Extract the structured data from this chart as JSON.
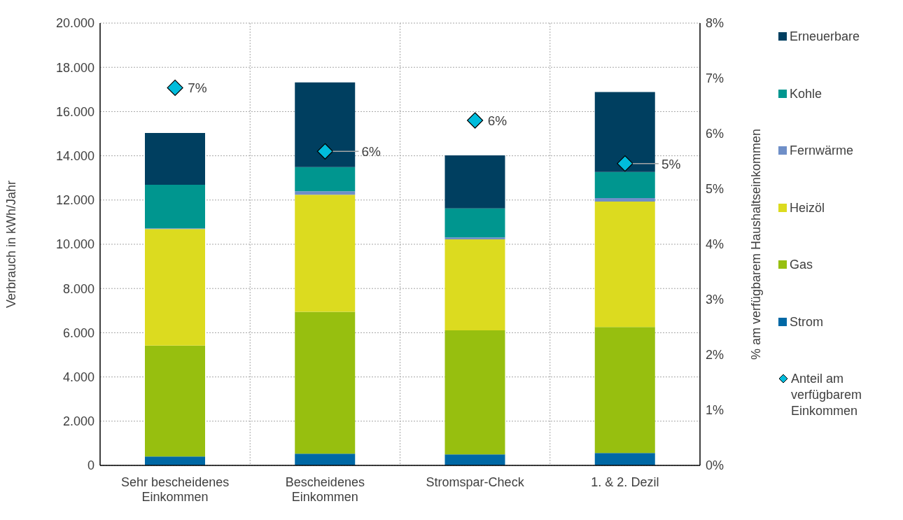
{
  "chart_data": {
    "type": "bar",
    "stacked": true,
    "categories": [
      "Sehr bescheidenes Einkommen",
      "Bescheidenes Einkommen",
      "Stromspar-Check",
      "1. & 2. Dezil"
    ],
    "series": [
      {
        "name": "Strom",
        "color": "#0068a5",
        "values": [
          400,
          530,
          500,
          560
        ]
      },
      {
        "name": "Gas",
        "color": "#97bf0f",
        "values": [
          5020,
          6420,
          5610,
          5700
        ]
      },
      {
        "name": "Heizöl",
        "color": "#dcdb1f",
        "values": [
          5270,
          5290,
          4110,
          5670
        ]
      },
      {
        "name": "Fernwärme",
        "color": "#6f8fc8",
        "values": [
          30,
          160,
          90,
          160
        ]
      },
      {
        "name": "Kohle",
        "color": "#00968f",
        "values": [
          1970,
          1090,
          1310,
          1180
        ]
      },
      {
        "name": "Erneuerbare",
        "color": "#003f60",
        "values": [
          2340,
          3830,
          2400,
          3610
        ]
      },
      {
        "name": "Anteil am verfügbarem Einkommen",
        "type": "scatter",
        "axis": "y2",
        "marker": "diamond",
        "color": "#00bcdc",
        "values": [
          6.83,
          5.68,
          6.24,
          5.46
        ],
        "value_labels": [
          "7%",
          "6%",
          "6%",
          "5%"
        ]
      }
    ],
    "ylabel": "Verbrauch in kWh/Jahr",
    "y2label": "% am verfügbarem Haushaltseinkommen",
    "ylim": [
      0,
      20000
    ],
    "yticks": [
      {
        "value": 0,
        "label": "0"
      },
      {
        "value": 2000,
        "label": "2.000"
      },
      {
        "value": 4000,
        "label": "4.000"
      },
      {
        "value": 6000,
        "label": "6.000"
      },
      {
        "value": 8000,
        "label": "8.000"
      },
      {
        "value": 10000,
        "label": "10.000"
      },
      {
        "value": 12000,
        "label": "12.000"
      },
      {
        "value": 14000,
        "label": "14.000"
      },
      {
        "value": 16000,
        "label": "16.000"
      },
      {
        "value": 18000,
        "label": "18.000"
      },
      {
        "value": 20000,
        "label": "20.000"
      }
    ],
    "y2lim": [
      0,
      8
    ],
    "y2ticks": [
      {
        "value": 0,
        "label": "0%"
      },
      {
        "value": 1,
        "label": "1%"
      },
      {
        "value": 2,
        "label": "2%"
      },
      {
        "value": 3,
        "label": "3%"
      },
      {
        "value": 4,
        "label": "4%"
      },
      {
        "value": 5,
        "label": "5%"
      },
      {
        "value": 6,
        "label": "6%"
      },
      {
        "value": 7,
        "label": "7%"
      },
      {
        "value": 8,
        "label": "8%"
      }
    ],
    "grid": true,
    "legend": "right"
  }
}
